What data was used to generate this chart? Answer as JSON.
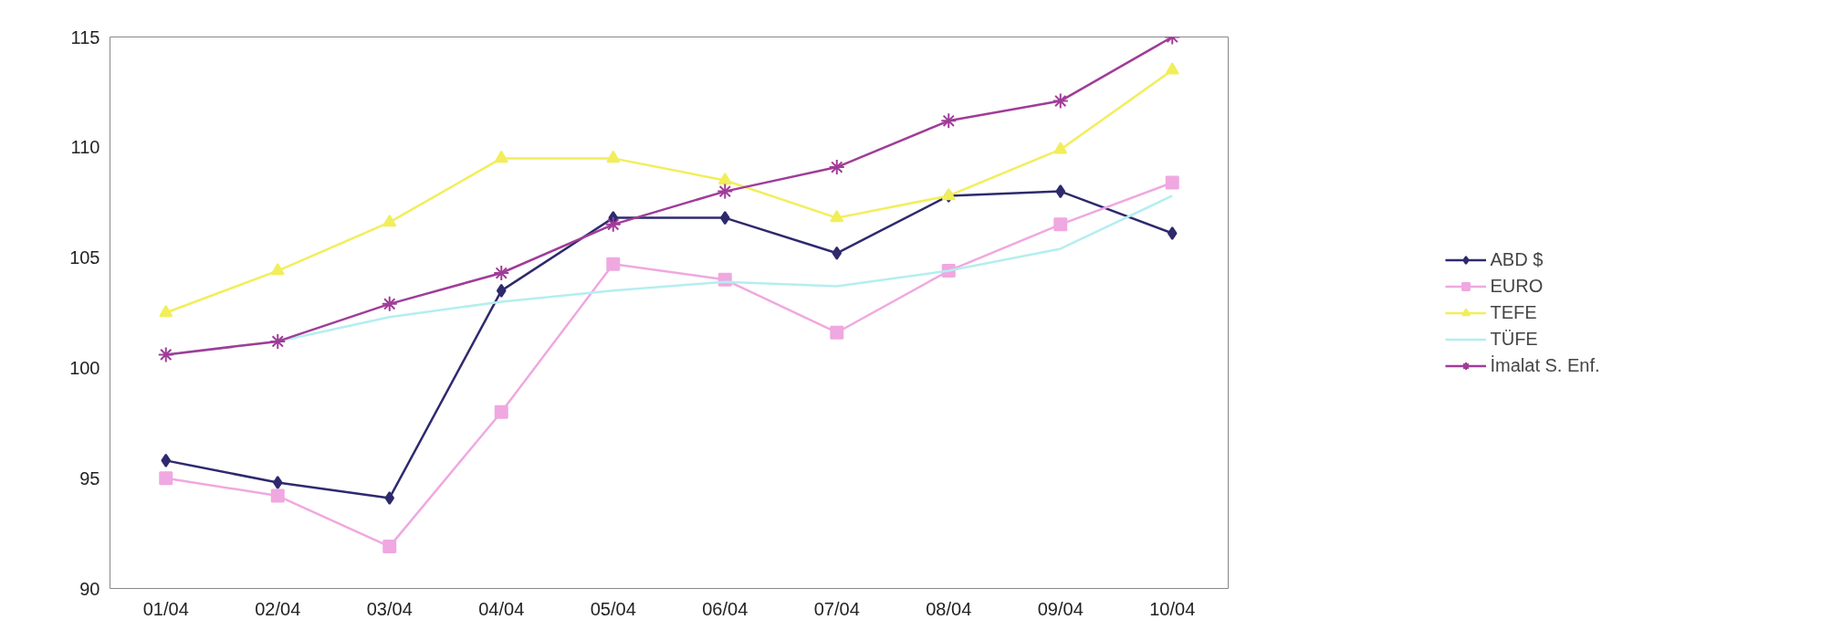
{
  "chart_data": {
    "type": "line",
    "categories": [
      "01/04",
      "02/04",
      "03/04",
      "04/04",
      "05/04",
      "06/04",
      "07/04",
      "08/04",
      "09/04",
      "10/04"
    ],
    "series": [
      {
        "name": "ABD $",
        "color": "#2e2a6e",
        "marker": "diamond",
        "values": [
          95.8,
          94.8,
          94.1,
          103.5,
          106.8,
          106.8,
          105.2,
          107.8,
          108.0,
          106.1
        ]
      },
      {
        "name": "EURO",
        "color": "#f0a8e0",
        "marker": "square",
        "values": [
          95.0,
          94.2,
          91.9,
          98.0,
          104.7,
          104.0,
          101.6,
          104.4,
          106.5,
          108.4
        ]
      },
      {
        "name": "TEFE",
        "color": "#f2ee5a",
        "marker": "triangle",
        "values": [
          102.5,
          104.4,
          106.6,
          109.5,
          109.5,
          108.5,
          106.8,
          107.8,
          109.9,
          113.5
        ]
      },
      {
        "name": "TÜFE",
        "color": "#b4eef0",
        "marker": "none",
        "values": [
          100.6,
          101.2,
          102.3,
          103.0,
          103.5,
          103.9,
          103.7,
          104.4,
          105.4,
          107.8
        ]
      },
      {
        "name": "İmalat S. Enf.",
        "color": "#a03c98",
        "marker": "cross",
        "values": [
          100.6,
          101.2,
          102.9,
          104.3,
          106.5,
          108.0,
          109.1,
          111.2,
          112.1,
          115.0
        ]
      }
    ],
    "ylim": [
      90,
      115
    ],
    "yticks": [
      90,
      95,
      100,
      105,
      110,
      115
    ],
    "grid": false,
    "legend": "right",
    "line_style": "solid"
  }
}
